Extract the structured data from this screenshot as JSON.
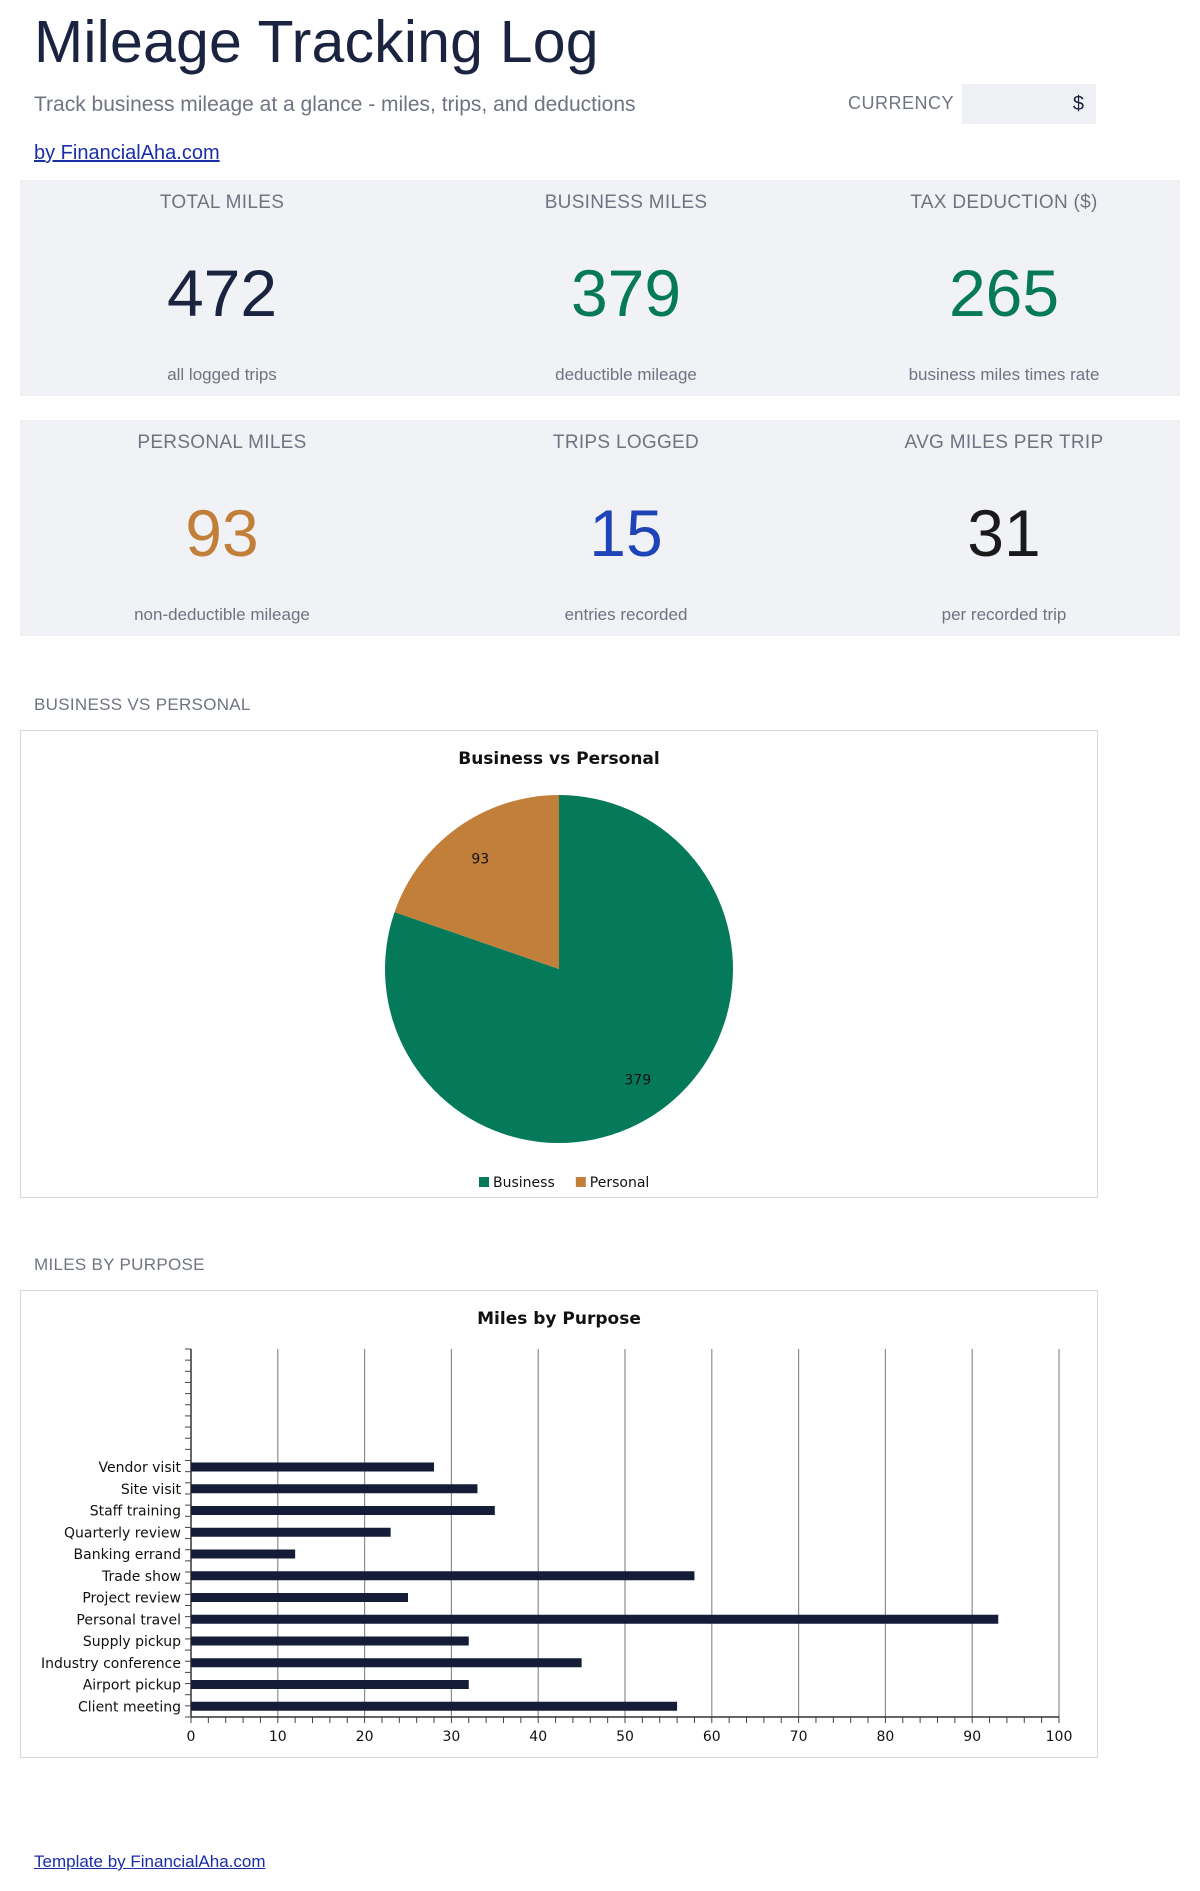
{
  "header": {
    "title": "Mileage Tracking Log",
    "subtitle": "Track business mileage at a glance - miles, trips, and deductions",
    "currency_label": "CURRENCY",
    "currency_value": "$",
    "by_link": "by FinancialAha.com"
  },
  "kpis": [
    {
      "label": "TOTAL MILES",
      "value": "472",
      "sub": "all logged trips",
      "color": "#1a2340"
    },
    {
      "label": "BUSINESS MILES",
      "value": "379",
      "sub": "deductible mileage",
      "color": "#057a55"
    },
    {
      "label": "TAX DEDUCTION ($)",
      "value": "265",
      "sub": "business miles times rate",
      "color": "#057a55"
    },
    {
      "label": "PERSONAL MILES",
      "value": "93",
      "sub": "non-deductible mileage",
      "color": "#c17f3a"
    },
    {
      "label": "TRIPS LOGGED",
      "value": "15",
      "sub": "entries recorded",
      "color": "#1f44b8"
    },
    {
      "label": "AVG MILES PER TRIP",
      "value": "31",
      "sub": "per recorded trip",
      "color": "#1a1a1a"
    }
  ],
  "sections": {
    "pie_label": "BUSINESS VS PERSONAL",
    "bar_label": "MILES BY PURPOSE"
  },
  "footer": {
    "link": "Template by FinancialAha.com"
  },
  "chart_data": [
    {
      "type": "pie",
      "title": "Business vs Personal",
      "categories": [
        "Business",
        "Personal"
      ],
      "values": [
        379,
        93
      ],
      "colors": [
        "#057a5a",
        "#c17f3a"
      ],
      "legend": "bottom",
      "data_labels": [
        "379",
        "93"
      ]
    },
    {
      "type": "bar",
      "orientation": "horizontal",
      "title": "Miles by Purpose",
      "categories": [
        "Vendor visit",
        "Site visit",
        "Staff training",
        "Quarterly review",
        "Banking errand",
        "Trade show",
        "Project review",
        "Personal travel",
        "Supply pickup",
        "Industry conference",
        "Airport pickup",
        "Client meeting"
      ],
      "values": [
        28,
        33,
        35,
        23,
        12,
        58,
        25,
        93,
        32,
        45,
        32,
        56
      ],
      "xlim": [
        0,
        100
      ],
      "x_ticks": [
        "0",
        "10",
        "20",
        "30",
        "40",
        "50",
        "60",
        "70",
        "80",
        "90",
        "100"
      ],
      "grid": true,
      "bar_color": "#141c38"
    }
  ]
}
